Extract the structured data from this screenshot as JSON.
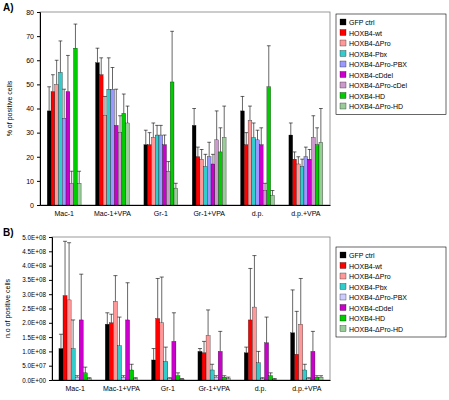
{
  "chart_data": [
    {
      "type": "bar",
      "title": "A)",
      "ylabel": "% of positive cells",
      "categories": [
        "Mac-1",
        "Mac-1+VPA",
        "Gr-1",
        "Gr-1+VPA",
        "d.p.",
        "d.p.+VPA"
      ],
      "ylim": [
        0,
        80
      ],
      "yticks": [
        0,
        10,
        20,
        30,
        40,
        50,
        60,
        70,
        80
      ],
      "grid": false,
      "legend": "right",
      "series": [
        {
          "name": "GFP ctrl",
          "color": "#000000",
          "values": [
            39,
            59,
            25,
            33,
            39,
            29
          ],
          "errors": [
            10,
            6,
            6,
            7,
            6,
            5
          ]
        },
        {
          "name": "HOXB4-wt",
          "color": "#ff0000",
          "values": [
            47,
            54,
            25,
            20,
            25,
            19
          ],
          "errors": [
            7,
            7,
            5,
            4,
            5,
            3
          ]
        },
        {
          "name": "HOXB4-ΔPro",
          "color": "#ff9999",
          "values": [
            50,
            37,
            28,
            19,
            35,
            17
          ],
          "errors": [
            10,
            8,
            6,
            4,
            6,
            3
          ]
        },
        {
          "name": "HOXB4-Pbx",
          "color": "#33cccc",
          "values": [
            55,
            48,
            29,
            16,
            28,
            16
          ],
          "errors": [
            13,
            13,
            4,
            5,
            6,
            3
          ]
        },
        {
          "name": "HOXB4-ΔPro-PBX",
          "color": "#9999ff",
          "values": [
            36,
            48,
            29,
            20,
            27,
            20
          ],
          "errors": [
            12,
            9,
            4,
            6,
            4,
            4
          ]
        },
        {
          "name": "HOXB4-cDdel",
          "color": "#cc00cc",
          "values": [
            47,
            33,
            25,
            17,
            25,
            19
          ],
          "errors": [
            15,
            15,
            4,
            4,
            7,
            4
          ]
        },
        {
          "name": "HOXB4-ΔPro-cDel",
          "color": "#cc99cc",
          "values": [
            9,
            30,
            14,
            27,
            6,
            28
          ],
          "errors": [
            5,
            7,
            4,
            12,
            3,
            9
          ]
        },
        {
          "name": "HOXB4-HD",
          "color": "#00cc00",
          "values": [
            65,
            38,
            51,
            22,
            49,
            25
          ],
          "errors": [
            10,
            8,
            21,
            10,
            17,
            7
          ]
        },
        {
          "name": "HOXB4-ΔPro-HD",
          "color": "#99cc99",
          "values": [
            9,
            34,
            7,
            28,
            4,
            26
          ],
          "errors": [
            5,
            7,
            2,
            13,
            2,
            14
          ]
        }
      ]
    },
    {
      "type": "bar",
      "title": "B)",
      "ylabel": "n.o of positive cells",
      "categories": [
        "Mac-1",
        "Mac-1+VPA",
        "Gr-1",
        "Gr-1+VPA",
        "d.p.",
        "d.p.+VPA"
      ],
      "ylim": [
        0,
        500000000
      ],
      "yticks": [
        {
          "value": 0,
          "label": "0.0E+00"
        },
        {
          "value": 50000000,
          "label": "5.0E+07"
        },
        {
          "value": 100000000,
          "label": "1.0E+08"
        },
        {
          "value": 150000000,
          "label": "1.5E+08"
        },
        {
          "value": 200000000,
          "label": "2.0E+08"
        },
        {
          "value": 250000000,
          "label": "2.5E+08"
        },
        {
          "value": 300000000,
          "label": "3.0E+08"
        },
        {
          "value": 350000000,
          "label": "3.5E+08"
        },
        {
          "value": 400000000,
          "label": "4.0E+08"
        },
        {
          "value": 450000000,
          "label": "4.5E+08"
        },
        {
          "value": 500000000,
          "label": "5.0E+08"
        }
      ],
      "grid": false,
      "legend": "right",
      "series": [
        {
          "name": "GFP ctrl",
          "color": "#000000",
          "values": [
            110000000,
            195000000,
            70000000,
            100000000,
            95000000,
            165000000
          ],
          "errors": [
            50000000,
            40000000,
            40000000,
            10000000,
            20000000,
            150000000
          ]
        },
        {
          "name": "HOXB4-wt",
          "color": "#ff0000",
          "values": [
            295000000,
            200000000,
            215000000,
            95000000,
            210000000,
            90000000
          ],
          "errors": [
            190000000,
            30000000,
            140000000,
            40000000,
            180000000,
            150000000
          ]
        },
        {
          "name": "HOXB4-ΔPro",
          "color": "#ff9999",
          "values": [
            280000000,
            275000000,
            200000000,
            155000000,
            255000000,
            195000000
          ],
          "errors": [
            200000000,
            90000000,
            160000000,
            90000000,
            180000000,
            160000000
          ]
        },
        {
          "name": "HOXB4-Pbx",
          "color": "#33cccc",
          "values": [
            110000000,
            120000000,
            65000000,
            35000000,
            60000000,
            35000000
          ],
          "errors": [
            100000000,
            100000000,
            50000000,
            20000000,
            40000000,
            20000000
          ]
        },
        {
          "name": "HOXB4-ΔPro-PBX",
          "color": "#ccccff",
          "values": [
            10000000,
            10000000,
            5000000,
            10000000,
            5000000,
            5000000
          ],
          "errors": [
            5000000,
            5000000,
            3000000,
            5000000,
            3000000,
            3000000
          ]
        },
        {
          "name": "HOXB4-cDdel",
          "color": "#cc00cc",
          "values": [
            210000000,
            210000000,
            135000000,
            100000000,
            130000000,
            100000000
          ],
          "errors": [
            160000000,
            130000000,
            100000000,
            70000000,
            90000000,
            70000000
          ]
        },
        {
          "name": "HOXB4-HD",
          "color": "#00cc00",
          "values": [
            25000000,
            35000000,
            15000000,
            10000000,
            15000000,
            10000000
          ],
          "errors": [
            20000000,
            20000000,
            10000000,
            5000000,
            10000000,
            5000000
          ]
        },
        {
          "name": "HOXB4-ΔPro-HD",
          "color": "#99cc99",
          "values": [
            5000000,
            5000000,
            3000000,
            5000000,
            3000000,
            10000000
          ],
          "errors": [
            3000000,
            3000000,
            2000000,
            5000000,
            2000000,
            5000000
          ]
        }
      ]
    }
  ]
}
